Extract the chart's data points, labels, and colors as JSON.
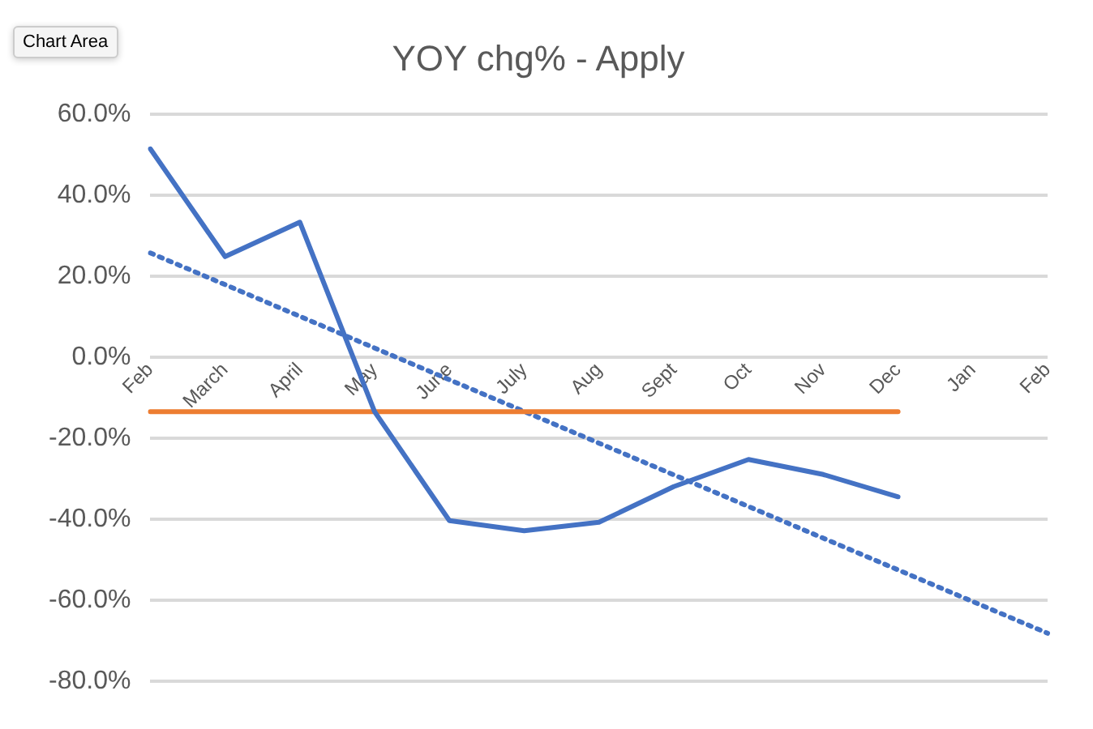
{
  "chart_data": {
    "type": "line",
    "title": "YOY chg% - Apply",
    "categories": [
      "Feb",
      "March",
      "April",
      "May",
      "June",
      "July",
      "Aug",
      "Sept",
      "Oct",
      "Nov",
      "Dec",
      "Jan",
      "Feb"
    ],
    "series": [
      {
        "color": "#4472c4",
        "values": [
          51.4,
          24.8,
          33.3,
          -13.5,
          -40.4,
          -42.9,
          -40.8,
          -32,
          -25.3,
          -29,
          -34.5,
          null,
          null
        ]
      },
      {
        "color": "#ed7d31",
        "values": [
          -13.5,
          -13.5,
          -13.5,
          -13.5,
          -13.5,
          -13.5,
          -13.5,
          -13.5,
          -13.5,
          -13.5,
          -13.5,
          null,
          null
        ]
      },
      {
        "color": "#4472c4",
        "line_style": "dotted",
        "values": [
          25.7,
          null,
          null,
          null,
          null,
          null,
          null,
          null,
          null,
          null,
          null,
          null,
          -68.2
        ]
      }
    ],
    "ylim": [
      -80,
      60
    ],
    "yticks": [
      {
        "value": -80,
        "label": "-80.0%"
      },
      {
        "value": -60,
        "label": "-60.0%"
      },
      {
        "value": -40,
        "label": "-40.0%"
      },
      {
        "value": -20,
        "label": "-20.0%"
      },
      {
        "value": 0,
        "label": "0.0%"
      },
      {
        "value": 20,
        "label": "20.0%"
      },
      {
        "value": 40,
        "label": "40.0%"
      },
      {
        "value": 60,
        "label": "60.0%"
      }
    ],
    "grid": "y",
    "legend": false,
    "marker": "none",
    "line_style": "solid",
    "annotations": [
      "Chart Area"
    ]
  }
}
